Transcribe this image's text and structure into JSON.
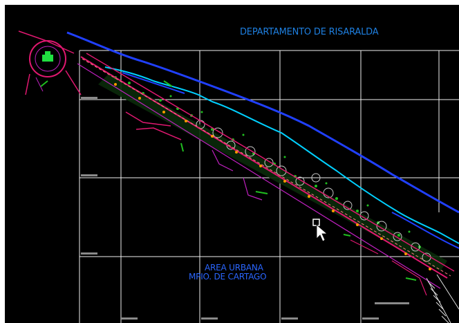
{
  "drawing": {
    "label_departamento": "DEPARTAMENTO DE RISARALDA",
    "label_area_line1": "AREA URBANA",
    "label_area_line2": "MPIO. DE CARTAGO",
    "colors": {
      "background": "#000000",
      "grid": "#f0f0f0",
      "river": "#2040ff",
      "river_edge": "#00d0ff",
      "road": "#e01870",
      "road_secondary": "#c020c0",
      "axis_path": "#ff8080",
      "vegetation": "#20c020",
      "trees": "#c8c8c8",
      "bollards": "#ff9a00",
      "label_blue": "#1e7fe0"
    },
    "icons": [
      "vehicle-icon",
      "mouse-pointer-icon"
    ]
  }
}
